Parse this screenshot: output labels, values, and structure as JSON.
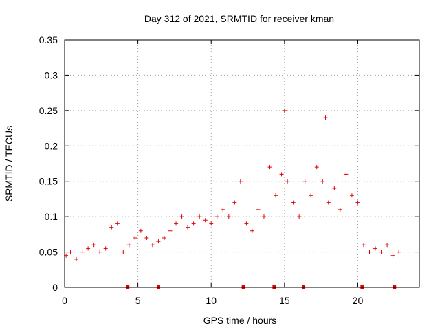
{
  "chart_data": {
    "type": "scatter",
    "title": "Day 312 of 2021, SRMTID for receiver kman",
    "xlabel": "GPS time / hours",
    "ylabel": "SRMTID / TECUs",
    "xlim": [
      0,
      24.2
    ],
    "ylim": [
      0,
      0.35
    ],
    "grid": true,
    "legend": "none",
    "marker": "plus",
    "color": "#e00000",
    "x_ticks": [
      0,
      5,
      10,
      15,
      20
    ],
    "x_tick_labels": [
      "0",
      "5",
      "10",
      "15",
      "20"
    ],
    "y_ticks": [
      0,
      0.05,
      0.1,
      0.15,
      0.2,
      0.25,
      0.3,
      0.35
    ],
    "y_tick_labels": [
      "0",
      "0.05",
      "0.1",
      "0.15",
      "0.2",
      "0.25",
      "0.3",
      "0.35"
    ],
    "zero_markers_x": [
      4.3,
      6.4,
      12.2,
      14.3,
      16.3,
      20.3,
      22.5
    ],
    "series": [
      {
        "name": "SRMTID",
        "x": [
          0.1,
          0.4,
          0.8,
          1.2,
          1.6,
          2.0,
          2.4,
          2.8,
          3.2,
          3.6,
          4.0,
          4.4,
          4.8,
          5.2,
          5.6,
          6.0,
          6.4,
          6.8,
          7.2,
          7.6,
          8.0,
          8.4,
          8.8,
          9.2,
          9.6,
          10.0,
          10.4,
          10.8,
          11.2,
          11.6,
          12.0,
          12.4,
          12.8,
          13.2,
          13.6,
          14.0,
          14.4,
          14.8,
          15.0,
          15.2,
          15.6,
          16.0,
          16.4,
          16.8,
          17.2,
          17.6,
          17.8,
          18.0,
          18.4,
          18.8,
          19.2,
          19.6,
          20.0,
          20.4,
          20.8,
          21.2,
          21.6,
          22.0,
          22.4,
          22.8
        ],
        "y": [
          0.045,
          0.05,
          0.04,
          0.05,
          0.055,
          0.06,
          0.05,
          0.055,
          0.085,
          0.09,
          0.05,
          0.06,
          0.07,
          0.08,
          0.07,
          0.06,
          0.065,
          0.07,
          0.08,
          0.09,
          0.1,
          0.085,
          0.09,
          0.1,
          0.095,
          0.09,
          0.1,
          0.11,
          0.1,
          0.12,
          0.15,
          0.09,
          0.08,
          0.11,
          0.1,
          0.17,
          0.13,
          0.16,
          0.25,
          0.15,
          0.12,
          0.1,
          0.15,
          0.13,
          0.17,
          0.15,
          0.24,
          0.12,
          0.14,
          0.11,
          0.16,
          0.13,
          0.12,
          0.06,
          0.05,
          0.055,
          0.05,
          0.06,
          0.045,
          0.05
        ]
      }
    ]
  }
}
